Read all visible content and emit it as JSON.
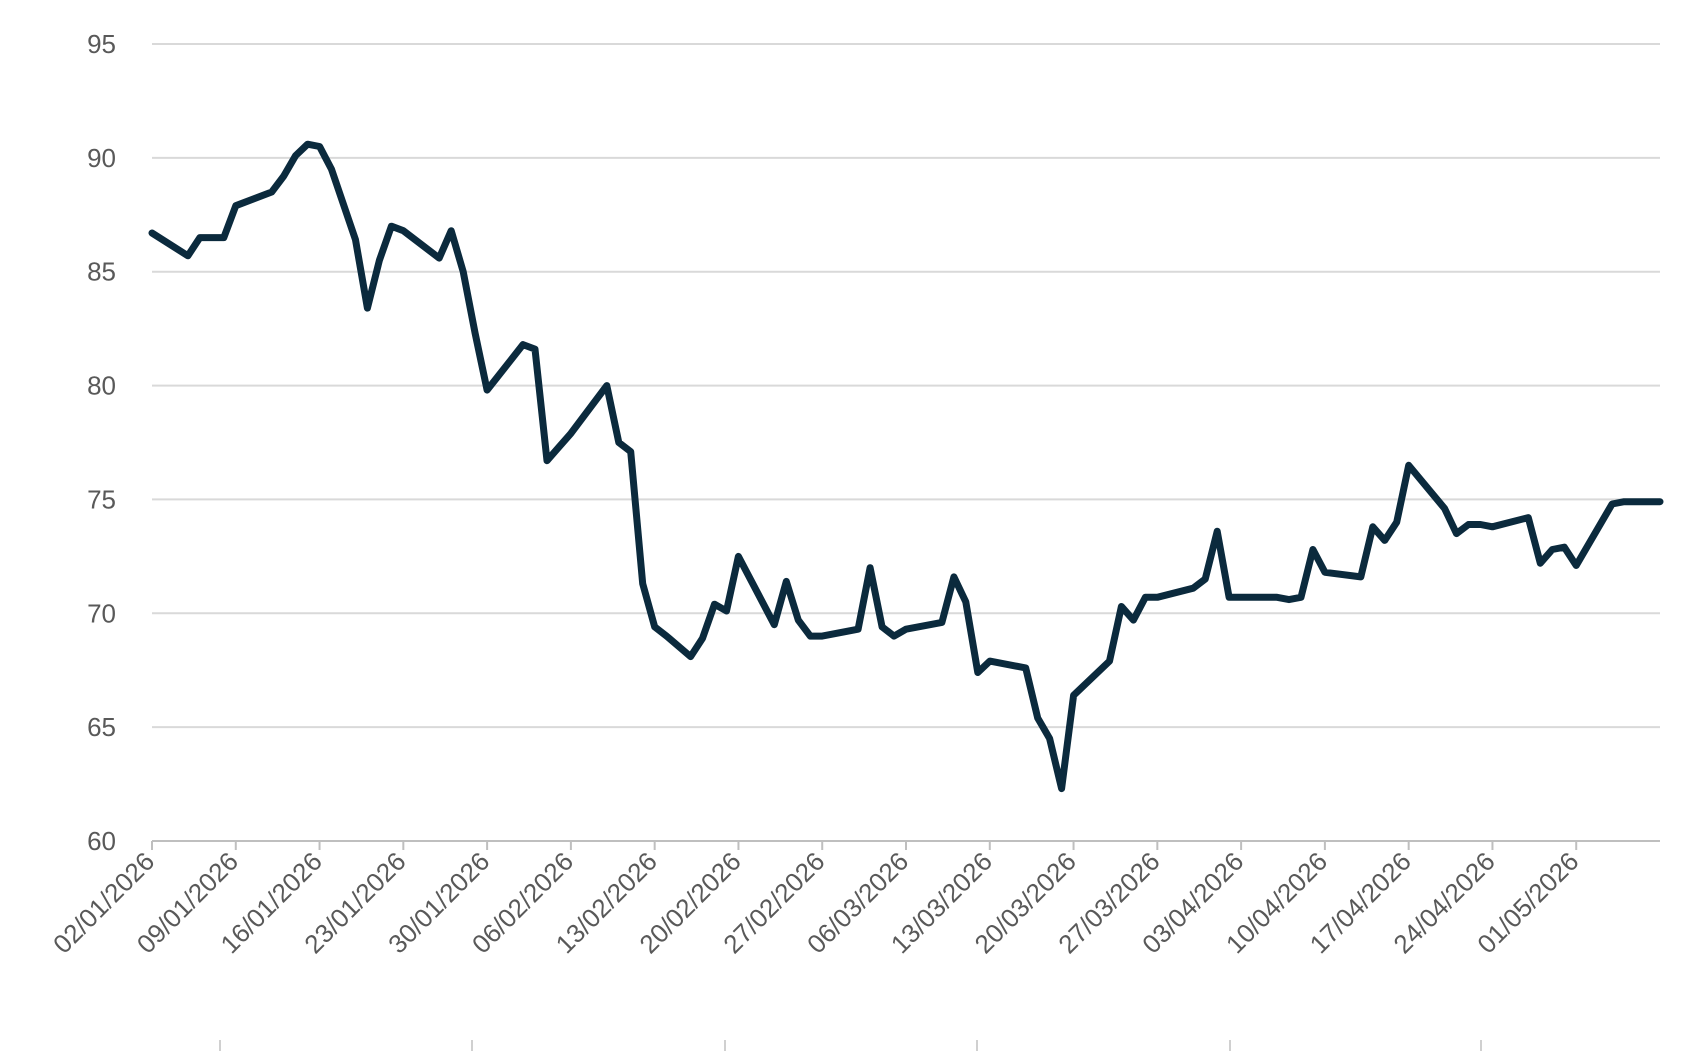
{
  "chart_data": {
    "type": "line",
    "title": "",
    "xlabel": "",
    "ylabel": "",
    "ylim": [
      60,
      95
    ],
    "xlim": [
      "02/01/2026",
      "08/05/2026"
    ],
    "yticks": [
      60,
      65,
      70,
      75,
      80,
      85,
      90,
      95
    ],
    "xticks": [
      "02/01/2026",
      "09/01/2026",
      "16/01/2026",
      "23/01/2026",
      "30/01/2026",
      "06/02/2026",
      "13/02/2026",
      "20/02/2026",
      "27/02/2026",
      "06/03/2026",
      "13/03/2026",
      "20/03/2026",
      "27/03/2026",
      "03/04/2026",
      "10/04/2026",
      "17/04/2026",
      "24/04/2026",
      "01/05/2026"
    ],
    "grid": "horizontal",
    "line_color": "#0b2a3d",
    "grid_color": "#d9d9d9",
    "tick_color": "#595959",
    "series": [
      {
        "x": [
          "02/01/2026",
          "05/01/2026",
          "06/01/2026",
          "07/01/2026",
          "08/01/2026",
          "09/01/2026",
          "12/01/2026",
          "13/01/2026",
          "14/01/2026",
          "15/01/2026",
          "16/01/2026",
          "17/01/2026",
          "19/01/2026",
          "20/01/2026",
          "21/01/2026",
          "22/01/2026",
          "23/01/2026",
          "26/01/2026",
          "27/01/2026",
          "28/01/2026",
          "29/01/2026",
          "30/01/2026",
          "02/02/2026",
          "03/02/2026",
          "04/02/2026",
          "05/02/2026",
          "06/02/2026",
          "09/02/2026",
          "10/02/2026",
          "11/02/2026",
          "12/02/2026",
          "13/02/2026",
          "14/02/2026",
          "16/02/2026",
          "17/02/2026",
          "18/02/2026",
          "19/02/2026",
          "20/02/2026",
          "23/02/2026",
          "24/02/2026",
          "25/02/2026",
          "26/02/2026",
          "27/02/2026",
          "02/03/2026",
          "03/03/2026",
          "04/03/2026",
          "05/03/2026",
          "06/03/2026",
          "09/03/2026",
          "10/03/2026",
          "11/03/2026",
          "12/03/2026",
          "13/03/2026",
          "16/03/2026",
          "17/03/2026",
          "18/03/2026",
          "19/03/2026",
          "20/03/2026",
          "23/03/2026",
          "24/03/2026",
          "25/03/2026",
          "26/03/2026",
          "27/03/2026",
          "30/03/2026",
          "31/03/2026",
          "01/04/2026",
          "02/04/2026",
          "03/04/2026",
          "06/04/2026",
          "07/04/2026",
          "08/04/2026",
          "09/04/2026",
          "10/04/2026",
          "13/04/2026",
          "14/04/2026",
          "15/04/2026",
          "16/04/2026",
          "17/04/2026",
          "20/04/2026",
          "21/04/2026",
          "22/04/2026",
          "23/04/2026",
          "24/04/2026",
          "27/04/2026",
          "28/04/2026",
          "29/04/2026",
          "30/04/2026",
          "01/05/2026",
          "04/05/2026",
          "05/05/2026",
          "06/05/2026",
          "07/05/2026",
          "08/05/2026"
        ],
        "y": [
          86.7,
          85.7,
          86.5,
          86.5,
          86.5,
          87.9,
          88.5,
          89.2,
          90.1,
          90.6,
          90.5,
          89.5,
          86.4,
          83.4,
          85.5,
          87.0,
          86.8,
          85.6,
          86.8,
          85.0,
          82.3,
          79.8,
          81.8,
          81.6,
          76.7,
          77.3,
          77.9,
          80.0,
          77.5,
          77.1,
          71.3,
          69.4,
          69.0,
          68.1,
          68.9,
          70.4,
          70.1,
          72.5,
          69.5,
          71.4,
          69.7,
          69.0,
          69.0,
          69.3,
          72.0,
          69.4,
          69.0,
          69.3,
          69.6,
          71.6,
          70.5,
          67.4,
          67.9,
          67.6,
          65.4,
          64.5,
          62.3,
          66.4,
          67.9,
          70.3,
          69.7,
          70.7,
          70.7,
          71.1,
          71.5,
          73.6,
          70.7,
          70.7,
          70.7,
          70.6,
          70.7,
          72.8,
          71.8,
          71.6,
          73.8,
          73.2,
          74.0,
          76.5,
          74.6,
          73.5,
          73.9,
          73.9,
          73.8,
          74.2,
          72.2,
          72.8,
          72.9,
          72.1,
          74.8,
          74.9,
          74.9,
          74.9,
          74.9
        ]
      }
    ]
  }
}
